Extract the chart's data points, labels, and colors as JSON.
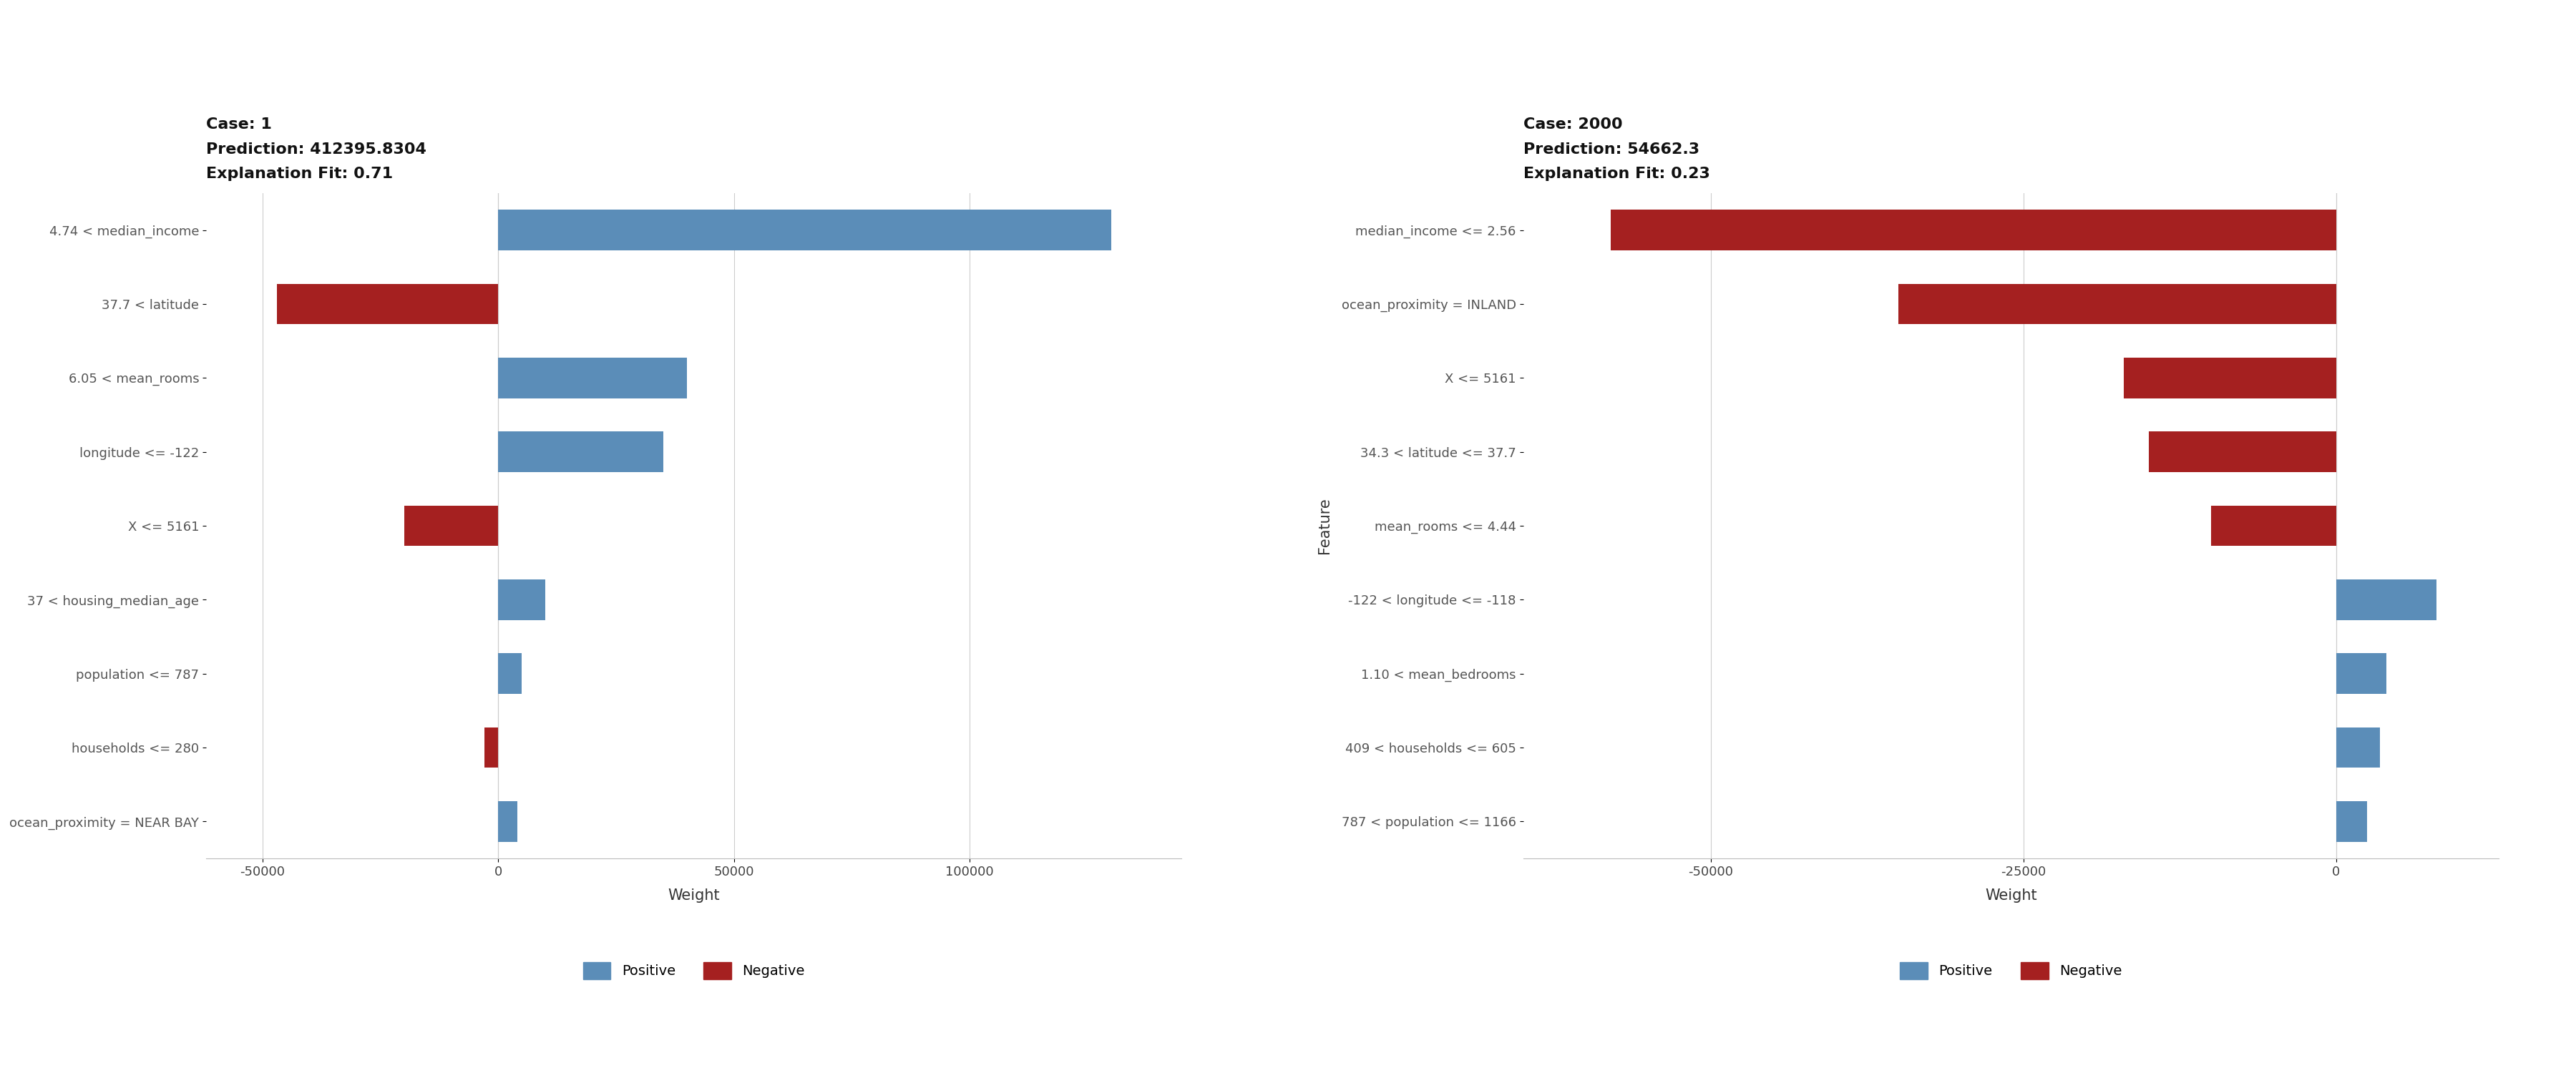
{
  "left": {
    "case": "Case: 1",
    "prediction": "Prediction: 412395.8304",
    "fit": "Explanation Fit: 0.71",
    "features": [
      "4.74 < median_income",
      "37.7 < latitude",
      "6.05 < mean_rooms",
      "longitude <= -122",
      "X <= 5161",
      "37 < housing_median_age",
      "population <= 787",
      "households <= 280",
      "ocean_proximity = NEAR BAY"
    ],
    "weights": [
      130000,
      -47000,
      40000,
      35000,
      -20000,
      10000,
      5000,
      -3000,
      4000
    ],
    "xlim": [
      -62000,
      145000
    ],
    "xticks": [
      -50000,
      0,
      50000,
      100000
    ],
    "xtick_labels": [
      "-50000",
      "0",
      "50000",
      "100000"
    ],
    "xlabel": "Weight"
  },
  "right": {
    "case": "Case: 2000",
    "prediction": "Prediction: 54662.3",
    "fit": "Explanation Fit: 0.23",
    "features": [
      "median_income <= 2.56",
      "ocean_proximity = INLAND",
      "X <= 5161",
      "34.3 < latitude <= 37.7",
      "mean_rooms <= 4.44",
      "-122 < longitude <= -118",
      "1.10 < mean_bedrooms",
      "409 < households <= 605",
      "787 < population <= 1166"
    ],
    "weights": [
      -58000,
      -35000,
      -17000,
      -15000,
      -10000,
      8000,
      4000,
      3500,
      2500
    ],
    "xlim": [
      -65000,
      13000
    ],
    "xticks": [
      -50000,
      -25000,
      0
    ],
    "xtick_labels": [
      "-50000",
      "-25000",
      "0"
    ],
    "xlabel": "Weight"
  },
  "color_positive": "#5b8db8",
  "color_negative": "#a52020",
  "ylabel": "Feature",
  "background_color": "#ffffff",
  "bar_height": 0.55,
  "title_fontsize": 16,
  "axis_label_fontsize": 15,
  "ytick_fontsize": 13,
  "xtick_fontsize": 13,
  "legend_fontsize": 14
}
